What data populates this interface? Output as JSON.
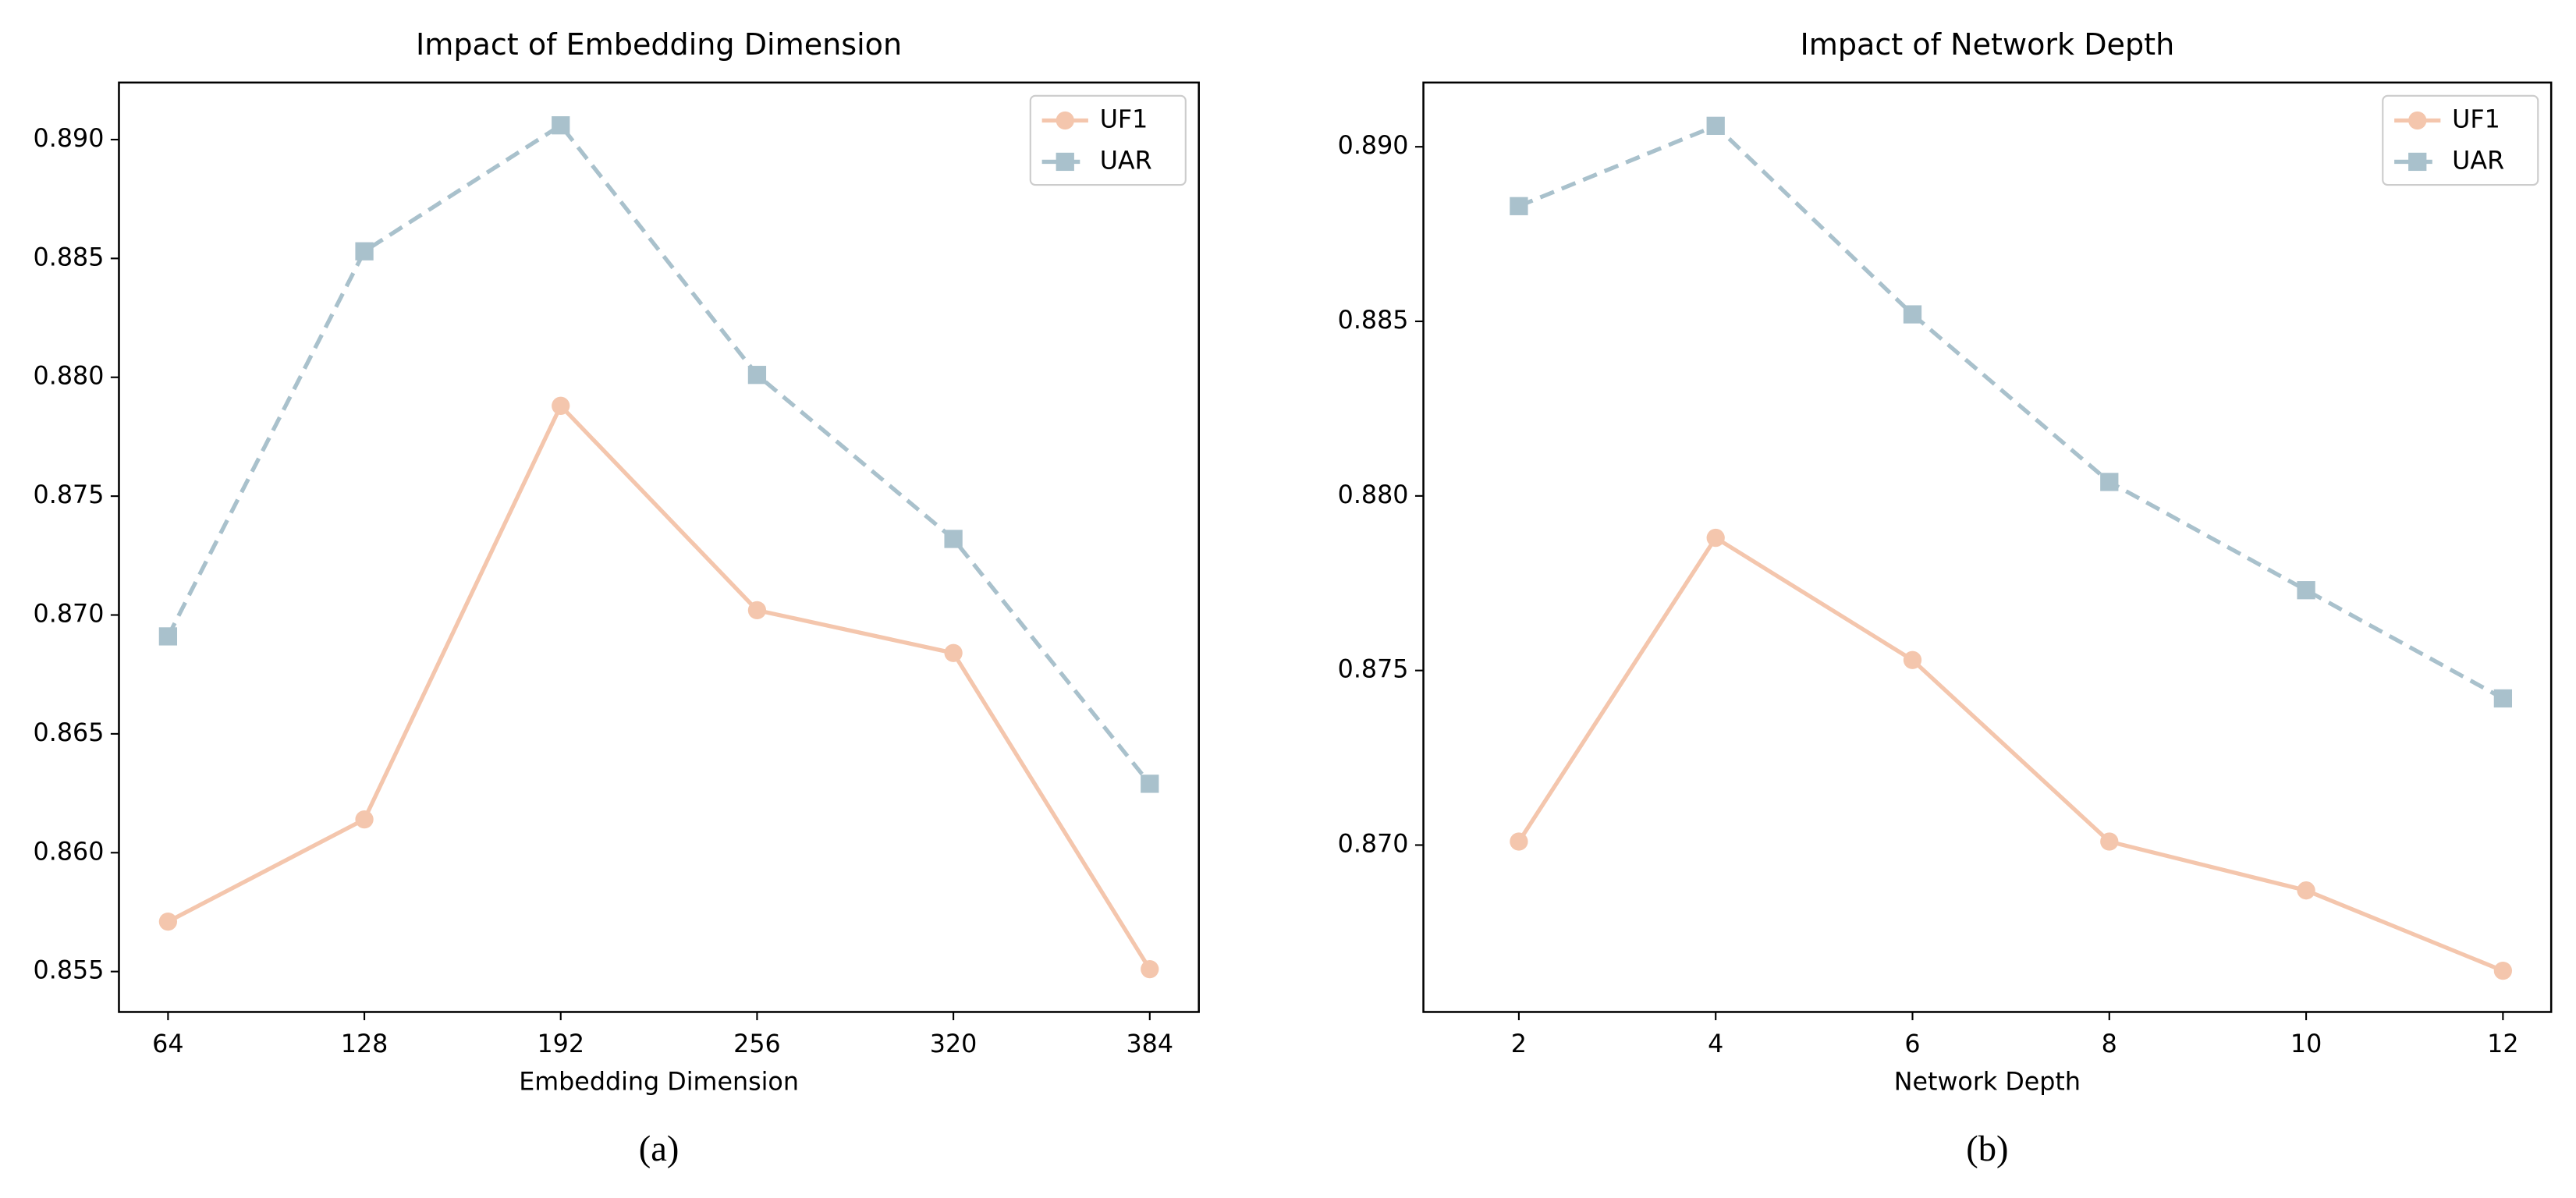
{
  "chart_data": [
    {
      "type": "line",
      "title": "Impact of Embedding Dimension",
      "xlabel": "Embedding Dimension",
      "caption": "(a)",
      "x": [
        64,
        128,
        192,
        256,
        320,
        384
      ],
      "series": [
        {
          "name": "UF1",
          "color": "#f4c6ad",
          "marker": "circle",
          "linestyle": "solid",
          "values": [
            0.8571,
            0.8614,
            0.8788,
            0.8702,
            0.8684,
            0.8551
          ]
        },
        {
          "name": "UAR",
          "color": "#a9c1cc",
          "marker": "square",
          "linestyle": "dashed",
          "values": [
            0.8691,
            0.8853,
            0.8906,
            0.8801,
            0.8732,
            0.8629
          ]
        }
      ],
      "xlim": [
        48,
        400
      ],
      "xticks": [
        64,
        128,
        192,
        256,
        320,
        384
      ],
      "ylim": [
        0.8533,
        0.8924
      ],
      "yticks": [
        {
          "value": 0.855,
          "label": "0.855"
        },
        {
          "value": 0.86,
          "label": "0.860"
        },
        {
          "value": 0.865,
          "label": "0.865"
        },
        {
          "value": 0.87,
          "label": "0.870"
        },
        {
          "value": 0.875,
          "label": "0.875"
        },
        {
          "value": 0.88,
          "label": "0.880"
        },
        {
          "value": 0.885,
          "label": "0.885"
        },
        {
          "value": 0.89,
          "label": "0.890"
        }
      ],
      "legend": "upper right",
      "grid": false
    },
    {
      "type": "line",
      "title": "Impact of Network Depth",
      "xlabel": "Network Depth",
      "caption": "(b)",
      "x": [
        2,
        4,
        6,
        8,
        10,
        12
      ],
      "series": [
        {
          "name": "UF1",
          "color": "#f4c6ad",
          "marker": "circle",
          "linestyle": "solid",
          "values": [
            0.8701,
            0.8788,
            0.8753,
            0.8701,
            0.8687,
            0.8664
          ]
        },
        {
          "name": "UAR",
          "color": "#a9c1cc",
          "marker": "square",
          "linestyle": "dashed",
          "values": [
            0.8883,
            0.8906,
            0.8852,
            0.8804,
            0.8773,
            0.8742
          ]
        }
      ],
      "xlim": [
        1.03,
        12.49
      ],
      "xticks": [
        2,
        4,
        6,
        8,
        10,
        12
      ],
      "ylim": [
        0.86522,
        0.89184
      ],
      "yticks": [
        {
          "value": 0.87,
          "label": "0.870"
        },
        {
          "value": 0.875,
          "label": "0.875"
        },
        {
          "value": 0.88,
          "label": "0.880"
        },
        {
          "value": 0.885,
          "label": "0.885"
        },
        {
          "value": 0.89,
          "label": "0.890"
        }
      ],
      "legend": "upper right",
      "grid": false
    }
  ]
}
